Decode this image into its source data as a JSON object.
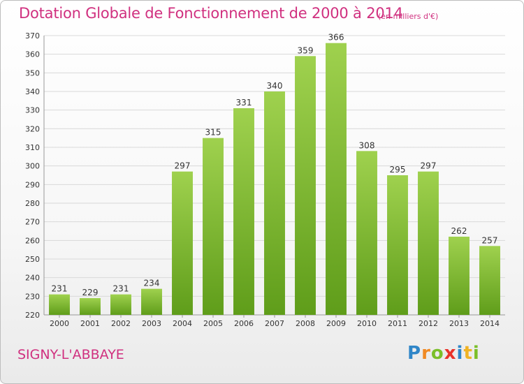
{
  "header": {
    "title": "Dotation Globale de Fonctionnement de 2000 à 2014",
    "unit": "(en milliers d'€)"
  },
  "footer": {
    "commune": "SIGNY-L'ABBAYE",
    "logo_letters": [
      "P",
      "r",
      "o",
      "x",
      "i",
      "t",
      "i"
    ]
  },
  "colors": {
    "accent": "#d0307f",
    "bar_top": "#9fd14e",
    "bar_bottom": "#5f9d1a",
    "grid": "#d9d9d9"
  },
  "chart_data": {
    "type": "bar",
    "title": "Dotation Globale de Fonctionnement de 2000 à 2014",
    "xlabel": "",
    "ylabel": "",
    "categories": [
      "2000",
      "2001",
      "2002",
      "2003",
      "2004",
      "2005",
      "2006",
      "2007",
      "2008",
      "2009",
      "2010",
      "2011",
      "2012",
      "2013",
      "2014"
    ],
    "values": [
      231,
      229,
      231,
      234,
      297,
      315,
      331,
      340,
      359,
      366,
      308,
      295,
      297,
      262,
      257
    ],
    "ylim": [
      220,
      370
    ],
    "yticks": [
      220,
      230,
      240,
      250,
      260,
      270,
      280,
      290,
      300,
      310,
      320,
      330,
      340,
      350,
      360,
      370
    ],
    "grid": true,
    "data_labels": true
  }
}
